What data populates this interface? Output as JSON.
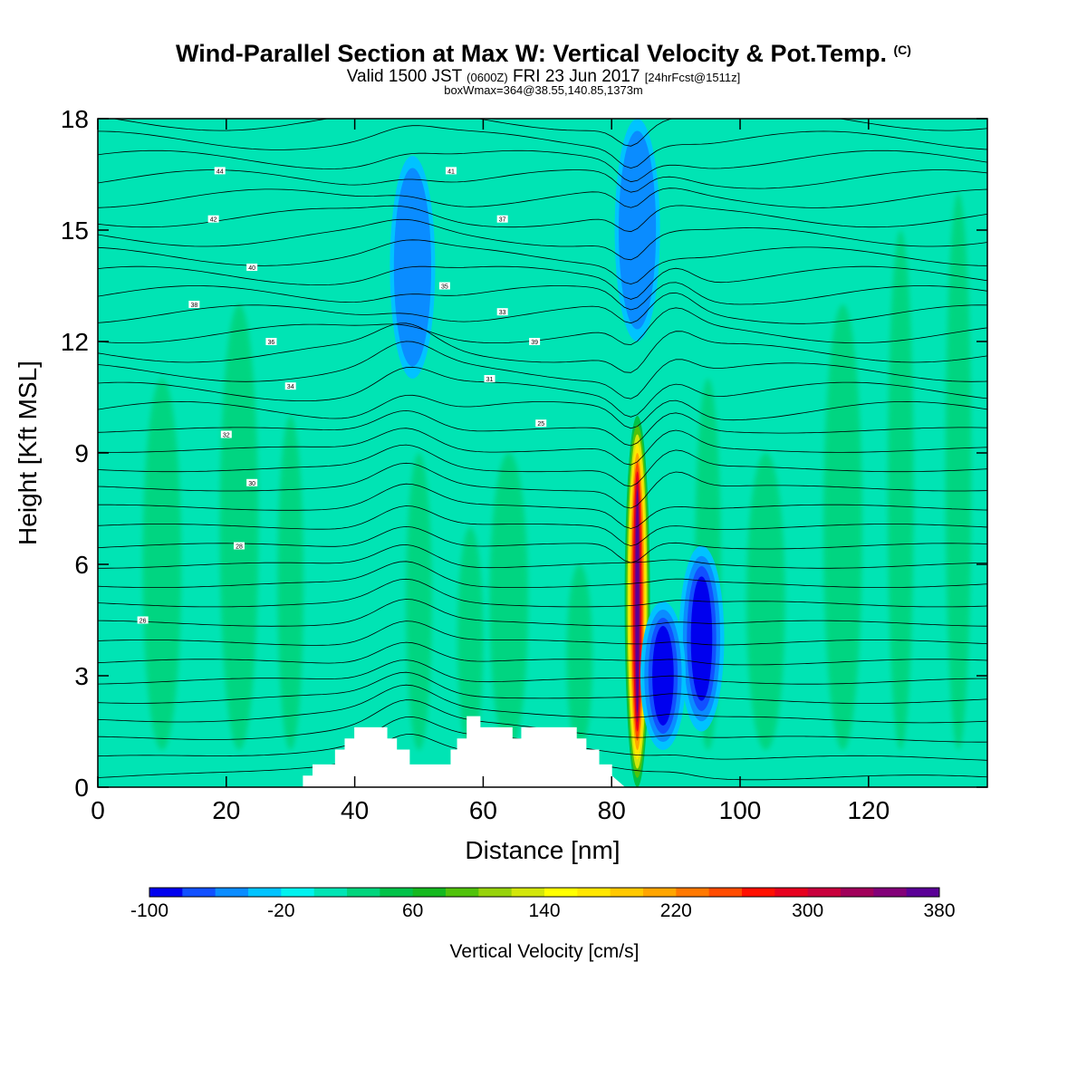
{
  "header": {
    "title": "Wind-Parallel Section at Max W: Vertical Velocity & Pot.Temp.",
    "title_mark": "(C)",
    "valid_prefix": "Valid 1500 JST",
    "valid_utc": "(0600Z)",
    "valid_date": "FRI 23 Jun 2017",
    "forecast": "[24hrFcst@1511z]",
    "boxwmax": "boxWmax=364@38.55,140.85,1373m"
  },
  "chart_data": {
    "type": "heatmap",
    "xlabel": "Distance [nm]",
    "ylabel": "Height [Kft MSL]",
    "xlim": [
      0,
      138.5
    ],
    "ylim": [
      0,
      18
    ],
    "xticks": [
      0,
      20,
      40,
      60,
      80,
      100,
      120
    ],
    "yticks": [
      0,
      3,
      6,
      9,
      12,
      15,
      18
    ],
    "grid": false,
    "colorbar": {
      "title": "Vertical Velocity [cm/s]",
      "min": -100,
      "max": 380,
      "step": 20,
      "tick_labels": [
        "-100",
        "-20",
        "60",
        "140",
        "220",
        "300",
        "380"
      ],
      "tick_values": [
        -100,
        -20,
        60,
        140,
        220,
        300,
        380
      ],
      "colors": [
        "#0000ee",
        "#1150ff",
        "#0a8cff",
        "#00c3ff",
        "#00f2ef",
        "#00e4b4",
        "#00d47c",
        "#00c248",
        "#14b81e",
        "#50c20a",
        "#96d20a",
        "#d2e60a",
        "#ffff00",
        "#ffe600",
        "#ffc800",
        "#ffa500",
        "#ff7800",
        "#ff4b00",
        "#ff0f00",
        "#e6001e",
        "#c8003c",
        "#a0005a",
        "#820078",
        "#5a0096"
      ]
    },
    "background_value_cm_s": 0,
    "features": [
      {
        "kind": "updraft",
        "x": 84,
        "y_range": [
          0,
          10
        ],
        "peak_cm_s": 364,
        "peak_height_kft": 5
      },
      {
        "kind": "downdraft",
        "x": 94,
        "y_range": [
          1.5,
          6.5
        ],
        "min_cm_s": -100,
        "min_height_kft": 4
      },
      {
        "kind": "downdraft",
        "x": 88,
        "y_range": [
          1,
          5
        ],
        "min_cm_s": -80
      },
      {
        "kind": "downdraft",
        "x": 49,
        "y_range": [
          11,
          17
        ],
        "min_cm_s": -40
      },
      {
        "kind": "downdraft",
        "x": 84,
        "y_range": [
          12,
          18
        ],
        "min_cm_s": -40
      }
    ],
    "terrain_kft": {
      "x": [
        32,
        33.5,
        37,
        38.5,
        40,
        41.5,
        45,
        46.5,
        48.5,
        55,
        56,
        57.5,
        59.5,
        62.5,
        64.5,
        66,
        73,
        74.5,
        76,
        78,
        80
      ],
      "height": [
        0.3,
        0.6,
        1.0,
        1.3,
        1.6,
        1.6,
        1.3,
        1.0,
        0.6,
        1.0,
        1.3,
        1.9,
        1.6,
        1.6,
        1.3,
        1.6,
        1.6,
        1.3,
        1.0,
        0.6,
        0.3
      ]
    },
    "theta_contour_labels": [
      "44",
      "42",
      "40",
      "38",
      "36",
      "34",
      "32",
      "30",
      "28",
      "26",
      "41",
      "37",
      "35",
      "33",
      "39",
      "31",
      "25"
    ]
  }
}
